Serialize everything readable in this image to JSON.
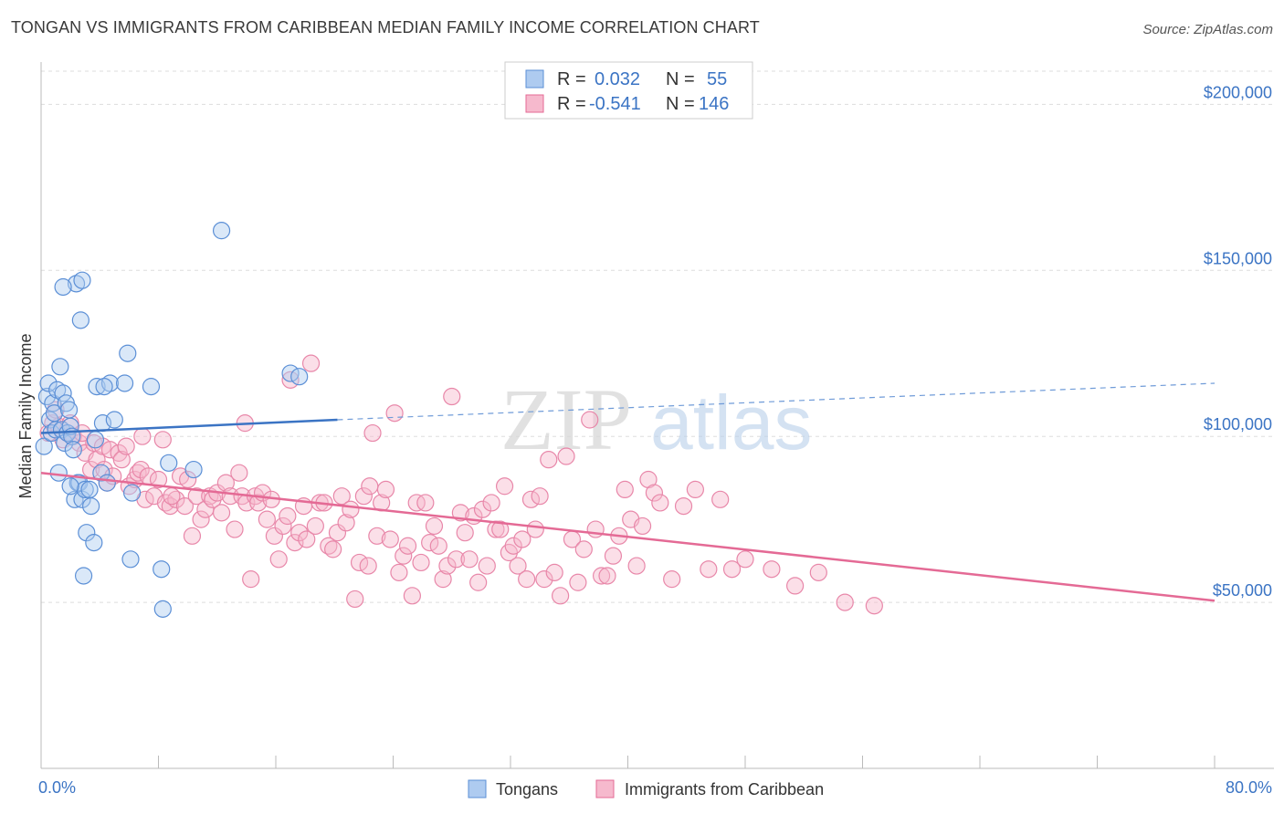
{
  "title": "TONGAN VS IMMIGRANTS FROM CARIBBEAN MEDIAN FAMILY INCOME CORRELATION CHART",
  "source": "Source: ZipAtlas.com",
  "watermark": {
    "zip": "ZIP",
    "atlas": "atlas"
  },
  "colors": {
    "blue": "#5b8fd6",
    "blue_fill": "#aecbf0",
    "pink": "#e46a95",
    "pink_fill": "#f6b9cd",
    "axis_text": "#3b74c4",
    "grid": "#dddddd"
  },
  "legend": {
    "r_label": "R =",
    "n_label": "N =",
    "rows": [
      {
        "r": "0.032",
        "n": "55",
        "color": "blue"
      },
      {
        "r": "-0.541",
        "n": "146",
        "color": "pink"
      }
    ]
  },
  "chart_data": {
    "type": "scatter",
    "title": "TONGAN VS IMMIGRANTS FROM CARIBBEAN MEDIAN FAMILY INCOME CORRELATION CHART",
    "xlabel": "",
    "ylabel": "Median Family Income",
    "xlim": [
      0,
      80
    ],
    "ylim": [
      0,
      210000
    ],
    "x_tick_labels": [
      "0.0%",
      "80.0%"
    ],
    "y_ticks": [
      50000,
      100000,
      150000,
      200000
    ],
    "y_tick_labels": [
      "$50,000",
      "$100,000",
      "$150,000",
      "$200,000"
    ],
    "grid": true,
    "legend_position": "top-center",
    "series": [
      {
        "name": "Tongans",
        "color": "#5b8fd6",
        "trend": {
          "x": [
            0,
            20.2
          ],
          "y": [
            101000,
            105000
          ],
          "dashed_to_x": 80,
          "dashed_y_end": 116000
        },
        "points": [
          [
            0.2,
            97000
          ],
          [
            0.4,
            112000
          ],
          [
            0.5,
            116000
          ],
          [
            0.6,
            105000
          ],
          [
            0.7,
            101000
          ],
          [
            0.8,
            110000
          ],
          [
            0.9,
            107000
          ],
          [
            1.0,
            102000
          ],
          [
            1.1,
            114000
          ],
          [
            1.2,
            89000
          ],
          [
            1.3,
            121000
          ],
          [
            1.4,
            102000
          ],
          [
            1.5,
            113000
          ],
          [
            1.6,
            98000
          ],
          [
            1.7,
            110000
          ],
          [
            1.8,
            101000
          ],
          [
            1.9,
            108000
          ],
          [
            2.0,
            103000
          ],
          [
            2.1,
            100000
          ],
          [
            2.2,
            96000
          ],
          [
            2.3,
            81000
          ],
          [
            2.4,
            146000
          ],
          [
            2.5,
            86000
          ],
          [
            2.6,
            86000
          ],
          [
            2.7,
            135000
          ],
          [
            2.8,
            81000
          ],
          [
            2.9,
            58000
          ],
          [
            3.0,
            84000
          ],
          [
            3.1,
            71000
          ],
          [
            3.3,
            84000
          ],
          [
            3.4,
            79000
          ],
          [
            3.6,
            68000
          ],
          [
            3.7,
            99000
          ],
          [
            3.8,
            115000
          ],
          [
            4.1,
            89000
          ],
          [
            4.2,
            104000
          ],
          [
            4.5,
            86000
          ],
          [
            4.7,
            116000
          ],
          [
            5.0,
            105000
          ],
          [
            5.7,
            116000
          ],
          [
            5.9,
            125000
          ],
          [
            6.1,
            63000
          ],
          [
            6.2,
            83000
          ],
          [
            7.5,
            115000
          ],
          [
            8.2,
            60000
          ],
          [
            8.3,
            48000
          ],
          [
            8.7,
            92000
          ],
          [
            10.4,
            90000
          ],
          [
            12.3,
            162000
          ],
          [
            17.0,
            119000
          ],
          [
            17.6,
            118000
          ],
          [
            1.5,
            145000
          ],
          [
            2.8,
            147000
          ],
          [
            4.3,
            115000
          ],
          [
            2.0,
            85000
          ]
        ]
      },
      {
        "name": "Immigrants from Caribbean",
        "color": "#e46a95",
        "trend": {
          "x": [
            0,
            80
          ],
          "y": [
            89000,
            50500
          ]
        },
        "points": [
          [
            0.5,
            101000
          ],
          [
            0.8,
            104000
          ],
          [
            1.2,
            103000
          ],
          [
            1.5,
            99000
          ],
          [
            1.8,
            101000
          ],
          [
            2.0,
            104000
          ],
          [
            2.2,
            100000
          ],
          [
            2.6,
            98000
          ],
          [
            2.8,
            101000
          ],
          [
            3.0,
            95000
          ],
          [
            3.4,
            90000
          ],
          [
            3.6,
            98000
          ],
          [
            3.8,
            93000
          ],
          [
            4.2,
            97000
          ],
          [
            4.3,
            90000
          ],
          [
            4.5,
            86000
          ],
          [
            4.7,
            96000
          ],
          [
            4.9,
            88000
          ],
          [
            5.3,
            95000
          ],
          [
            5.5,
            93000
          ],
          [
            5.8,
            97000
          ],
          [
            6.0,
            85000
          ],
          [
            6.4,
            87000
          ],
          [
            6.6,
            89000
          ],
          [
            6.8,
            90000
          ],
          [
            7.1,
            81000
          ],
          [
            7.3,
            88000
          ],
          [
            7.7,
            82000
          ],
          [
            8.0,
            87000
          ],
          [
            8.3,
            99000
          ],
          [
            8.5,
            80000
          ],
          [
            8.8,
            79000
          ],
          [
            9.2,
            81000
          ],
          [
            9.5,
            88000
          ],
          [
            9.8,
            79000
          ],
          [
            10.0,
            87000
          ],
          [
            10.3,
            70000
          ],
          [
            10.6,
            82000
          ],
          [
            10.9,
            75000
          ],
          [
            11.2,
            78000
          ],
          [
            11.5,
            82000
          ],
          [
            11.7,
            81000
          ],
          [
            12.0,
            83000
          ],
          [
            12.3,
            77000
          ],
          [
            12.6,
            86000
          ],
          [
            12.9,
            82000
          ],
          [
            13.2,
            72000
          ],
          [
            13.5,
            89000
          ],
          [
            13.7,
            82000
          ],
          [
            14.0,
            80000
          ],
          [
            14.3,
            57000
          ],
          [
            14.6,
            82000
          ],
          [
            14.8,
            80000
          ],
          [
            15.1,
            83000
          ],
          [
            15.4,
            75000
          ],
          [
            15.7,
            81000
          ],
          [
            15.9,
            70000
          ],
          [
            16.2,
            63000
          ],
          [
            16.5,
            73000
          ],
          [
            16.8,
            76000
          ],
          [
            17.0,
            117000
          ],
          [
            17.3,
            68000
          ],
          [
            17.6,
            71000
          ],
          [
            17.9,
            79000
          ],
          [
            18.1,
            69000
          ],
          [
            18.4,
            122000
          ],
          [
            18.7,
            73000
          ],
          [
            19.0,
            80000
          ],
          [
            19.3,
            80000
          ],
          [
            19.6,
            67000
          ],
          [
            19.9,
            66000
          ],
          [
            20.2,
            71000
          ],
          [
            20.5,
            82000
          ],
          [
            20.8,
            74000
          ],
          [
            21.1,
            78000
          ],
          [
            21.4,
            51000
          ],
          [
            21.7,
            62000
          ],
          [
            22.0,
            82000
          ],
          [
            22.3,
            61000
          ],
          [
            22.6,
            101000
          ],
          [
            22.9,
            70000
          ],
          [
            23.2,
            80000
          ],
          [
            23.5,
            84000
          ],
          [
            23.8,
            69000
          ],
          [
            24.1,
            107000
          ],
          [
            24.4,
            59000
          ],
          [
            24.7,
            64000
          ],
          [
            25.0,
            67000
          ],
          [
            25.3,
            52000
          ],
          [
            25.6,
            80000
          ],
          [
            25.9,
            62000
          ],
          [
            26.2,
            80000
          ],
          [
            26.5,
            68000
          ],
          [
            26.8,
            73000
          ],
          [
            27.1,
            67000
          ],
          [
            27.4,
            57000
          ],
          [
            27.7,
            61000
          ],
          [
            28.0,
            112000
          ],
          [
            28.3,
            63000
          ],
          [
            28.6,
            77000
          ],
          [
            28.9,
            71000
          ],
          [
            29.2,
            63000
          ],
          [
            29.5,
            76000
          ],
          [
            29.8,
            56000
          ],
          [
            30.1,
            78000
          ],
          [
            30.4,
            61000
          ],
          [
            30.7,
            80000
          ],
          [
            31.0,
            72000
          ],
          [
            31.3,
            72000
          ],
          [
            31.6,
            85000
          ],
          [
            31.9,
            65000
          ],
          [
            32.2,
            67000
          ],
          [
            32.5,
            61000
          ],
          [
            32.8,
            69000
          ],
          [
            33.1,
            57000
          ],
          [
            33.4,
            81000
          ],
          [
            33.7,
            72000
          ],
          [
            34.0,
            82000
          ],
          [
            34.3,
            57000
          ],
          [
            34.6,
            93000
          ],
          [
            35.0,
            59000
          ],
          [
            35.4,
            52000
          ],
          [
            35.8,
            94000
          ],
          [
            36.2,
            69000
          ],
          [
            36.6,
            56000
          ],
          [
            37.0,
            66000
          ],
          [
            37.4,
            105000
          ],
          [
            37.8,
            72000
          ],
          [
            38.2,
            58000
          ],
          [
            38.6,
            58000
          ],
          [
            39.0,
            64000
          ],
          [
            39.4,
            70000
          ],
          [
            39.8,
            84000
          ],
          [
            40.2,
            75000
          ],
          [
            40.6,
            61000
          ],
          [
            41.0,
            73000
          ],
          [
            41.4,
            87000
          ],
          [
            41.8,
            83000
          ],
          [
            42.2,
            80000
          ],
          [
            43.0,
            57000
          ],
          [
            43.8,
            79000
          ],
          [
            44.6,
            84000
          ],
          [
            45.5,
            60000
          ],
          [
            46.3,
            81000
          ],
          [
            47.1,
            60000
          ],
          [
            48.0,
            63000
          ],
          [
            49.8,
            60000
          ],
          [
            51.4,
            55000
          ],
          [
            53.0,
            59000
          ],
          [
            54.8,
            50000
          ],
          [
            56.8,
            49000
          ],
          [
            1.0,
            108000
          ],
          [
            6.9,
            100000
          ],
          [
            8.9,
            82000
          ],
          [
            13.9,
            104000
          ],
          [
            22.4,
            85000
          ]
        ]
      }
    ]
  },
  "bottom_legend": [
    {
      "label": "Tongans",
      "color": "blue"
    },
    {
      "label": "Immigrants from Caribbean",
      "color": "pink"
    }
  ]
}
